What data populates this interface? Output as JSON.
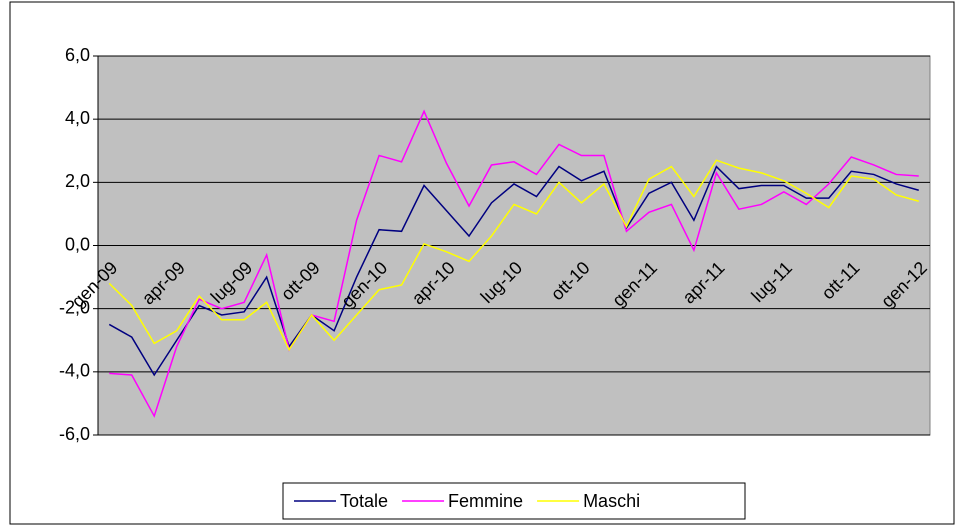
{
  "chart_data": {
    "type": "line",
    "categories": [
      "gen-09",
      null,
      null,
      "apr-09",
      null,
      null,
      "lug-09",
      null,
      null,
      "ott-09",
      null,
      null,
      "gen-10",
      null,
      null,
      "apr-10",
      null,
      null,
      "lug-10",
      null,
      null,
      "ott-10",
      null,
      null,
      "gen-11",
      null,
      null,
      "apr-11",
      null,
      null,
      "lug-11",
      null,
      null,
      "ott-11",
      null,
      null,
      "gen-12"
    ],
    "series": [
      {
        "name": "Totale",
        "color": "#000080",
        "values": [
          -2.5,
          -2.9,
          -4.1,
          -3.0,
          -1.9,
          -2.2,
          -2.1,
          -1.0,
          -3.2,
          -2.2,
          -2.7,
          -1.0,
          0.5,
          0.45,
          1.9,
          1.1,
          0.3,
          1.35,
          1.95,
          1.55,
          2.5,
          2.05,
          2.35,
          0.55,
          1.65,
          2.0,
          0.8,
          2.5,
          1.8,
          1.9,
          1.9,
          1.5,
          1.5,
          2.35,
          2.25,
          1.95,
          1.75
        ]
      },
      {
        "name": "Femmine",
        "color": "#ff00ff",
        "values": [
          -4.05,
          -4.1,
          -5.4,
          -3.2,
          -1.7,
          -2.0,
          -1.8,
          -0.3,
          -3.3,
          -2.2,
          -2.4,
          0.8,
          2.85,
          2.65,
          4.25,
          2.6,
          1.25,
          2.55,
          2.65,
          2.25,
          3.2,
          2.85,
          2.85,
          0.45,
          1.05,
          1.3,
          -0.15,
          2.3,
          1.15,
          1.3,
          1.7,
          1.3,
          1.95,
          2.8,
          2.55,
          2.25,
          2.2
        ]
      },
      {
        "name": "Maschi",
        "color": "#ffff00",
        "values": [
          -1.2,
          -1.9,
          -3.1,
          -2.7,
          -1.6,
          -2.35,
          -2.35,
          -1.8,
          -3.3,
          -2.2,
          -3.0,
          -2.2,
          -1.4,
          -1.25,
          0.05,
          -0.2,
          -0.5,
          0.3,
          1.3,
          1.0,
          2.0,
          1.35,
          1.95,
          0.6,
          2.1,
          2.5,
          1.55,
          2.7,
          2.45,
          2.3,
          2.05,
          1.65,
          1.2,
          2.2,
          2.1,
          1.6,
          1.4
        ]
      }
    ],
    "ylim": [
      -6,
      6
    ],
    "yticks": [
      {
        "value": -6,
        "label": "-6,0"
      },
      {
        "value": -4,
        "label": "-4,0"
      },
      {
        "value": -2,
        "label": "-2,0"
      },
      {
        "value": 0,
        "label": "0,0"
      },
      {
        "value": 2,
        "label": "2,0"
      },
      {
        "value": 4,
        "label": "4,0"
      },
      {
        "value": 6,
        "label": "6,0"
      }
    ],
    "grid": true,
    "legend": "bottom"
  }
}
